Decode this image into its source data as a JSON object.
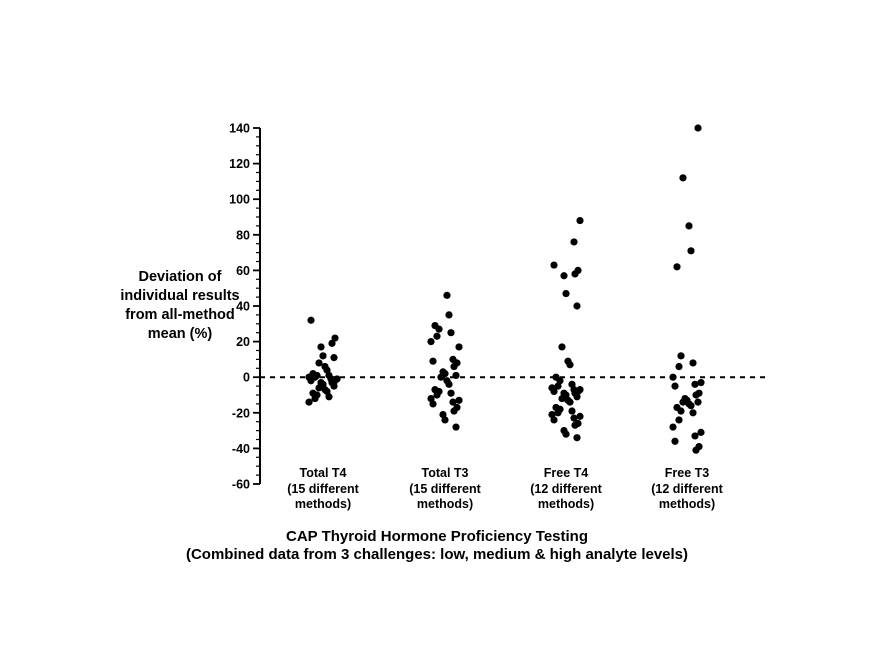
{
  "chart_data": {
    "type": "scatter",
    "title": "CAP Thyroid Hormone Proficiency Testing",
    "subtitle": "(Combined data from 3 challenges: low, medium & high analyte levels)",
    "ylabel_lines": [
      "Deviation of",
      "individual results",
      "from all-method",
      "mean (%)"
    ],
    "ylim": [
      -60,
      140
    ],
    "yticks": [
      140,
      120,
      100,
      80,
      60,
      40,
      20,
      0,
      -20,
      -40,
      -60
    ],
    "reference_line": 0,
    "grid": false,
    "categories": [
      {
        "lines": [
          "Total T4",
          "(15 different",
          "methods)"
        ]
      },
      {
        "lines": [
          "Total T3",
          "(15 different",
          "methods)"
        ]
      },
      {
        "lines": [
          "Free T4",
          "(12 different",
          "methods)"
        ]
      },
      {
        "lines": [
          "Free T3",
          "(12 different",
          "methods)"
        ]
      }
    ],
    "series": [
      {
        "category_index": 0,
        "values": [
          32,
          22,
          19,
          17,
          12,
          11,
          8,
          6,
          4,
          2,
          1,
          1,
          0,
          0,
          -1,
          -1,
          -2,
          -2,
          -3,
          -3,
          -4,
          -5,
          -6,
          -7,
          -8,
          -9,
          -10,
          -11,
          -12,
          -14
        ]
      },
      {
        "category_index": 1,
        "values": [
          46,
          35,
          29,
          27,
          25,
          23,
          20,
          17,
          10,
          9,
          8,
          6,
          3,
          2,
          1,
          0,
          -2,
          -4,
          -7,
          -8,
          -9,
          -10,
          -12,
          -13,
          -14,
          -15,
          -17,
          -19,
          -21,
          -24,
          -28
        ]
      },
      {
        "category_index": 2,
        "values": [
          88,
          76,
          63,
          60,
          58,
          57,
          47,
          40,
          17,
          9,
          7,
          0,
          -2,
          -4,
          -5,
          -6,
          -7,
          -7,
          -8,
          -8,
          -9,
          -9,
          -10,
          -11,
          -12,
          -13,
          -14,
          -17,
          -18,
          -19,
          -20,
          -21,
          -22,
          -23,
          -24,
          -26,
          -27,
          -30,
          -32,
          -34
        ]
      },
      {
        "category_index": 3,
        "values": [
          140,
          112,
          85,
          71,
          62,
          12,
          8,
          6,
          0,
          -3,
          -4,
          -5,
          -9,
          -10,
          -12,
          -13,
          -14,
          -14,
          -15,
          -16,
          -17,
          -19,
          -20,
          -24,
          -28,
          -31,
          -33,
          -36,
          -39,
          -41
        ]
      }
    ]
  }
}
